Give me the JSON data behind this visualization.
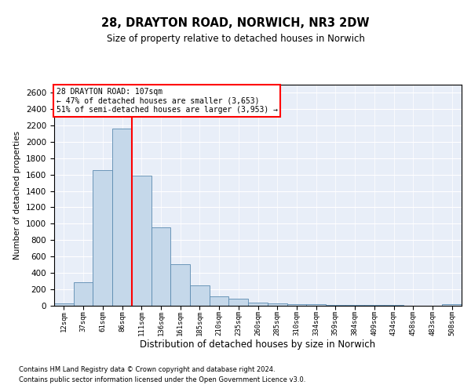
{
  "title": "28, DRAYTON ROAD, NORWICH, NR3 2DW",
  "subtitle": "Size of property relative to detached houses in Norwich",
  "xlabel": "Distribution of detached houses by size in Norwich",
  "ylabel": "Number of detached properties",
  "bar_color": "#c5d8ea",
  "bar_edge_color": "#5a8ab0",
  "background_color": "#e8eef8",
  "annotation_text_line1": "28 DRAYTON ROAD: 107sqm",
  "annotation_text_line2": "← 47% of detached houses are smaller (3,653)",
  "annotation_text_line3": "51% of semi-detached houses are larger (3,953) →",
  "footer_line1": "Contains HM Land Registry data © Crown copyright and database right 2024.",
  "footer_line2": "Contains public sector information licensed under the Open Government Licence v3.0.",
  "bin_labels": [
    "12sqm",
    "37sqm",
    "61sqm",
    "86sqm",
    "111sqm",
    "136sqm",
    "161sqm",
    "185sqm",
    "210sqm",
    "235sqm",
    "260sqm",
    "285sqm",
    "310sqm",
    "334sqm",
    "359sqm",
    "384sqm",
    "409sqm",
    "434sqm",
    "458sqm",
    "483sqm",
    "508sqm"
  ],
  "counts": [
    28,
    290,
    1650,
    2160,
    1590,
    960,
    505,
    245,
    110,
    90,
    42,
    33,
    22,
    18,
    12,
    8,
    6,
    5,
    3,
    2,
    20
  ],
  "ylim_max": 2700,
  "ytick_step": 200,
  "red_line_x": 3.5
}
